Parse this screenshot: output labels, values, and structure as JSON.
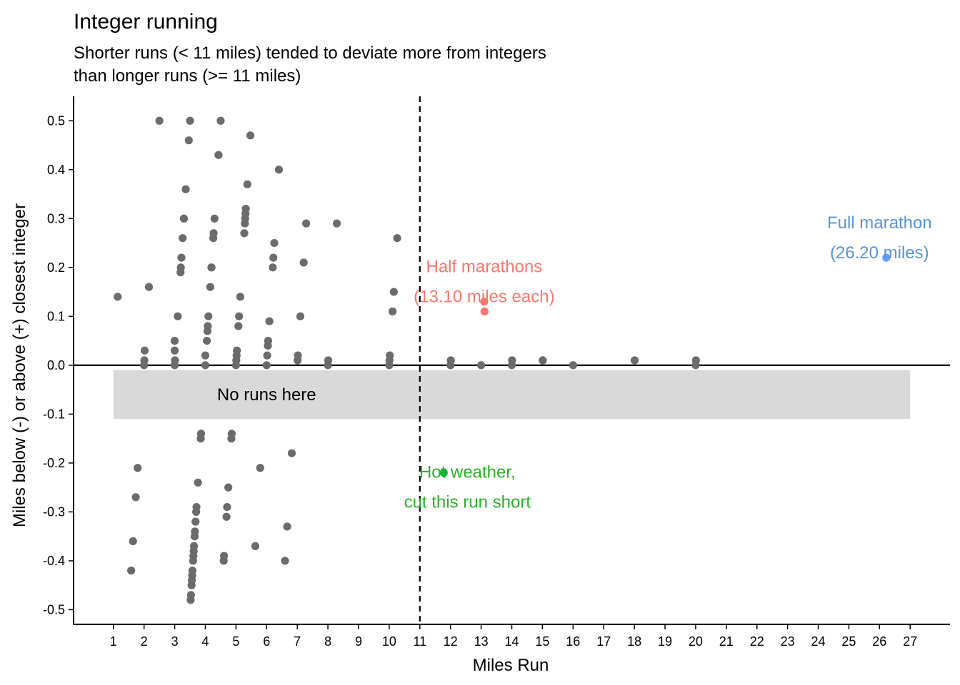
{
  "chart_data": {
    "type": "scatter",
    "title": "Integer running",
    "subtitle_lines": [
      "Shorter runs (< 11 miles) tended to deviate more from integers",
      "than longer runs (>= 11 miles)"
    ],
    "xlabel": "Miles Run",
    "ylabel": "Miles below (-) or above (+) closest integer",
    "xlim": [
      -0.3,
      28.3
    ],
    "ylim": [
      -0.53,
      0.55
    ],
    "x_ticks": [
      1,
      2,
      3,
      4,
      5,
      6,
      7,
      8,
      9,
      10,
      11,
      12,
      13,
      14,
      15,
      16,
      17,
      18,
      19,
      20,
      21,
      22,
      23,
      24,
      25,
      26,
      27
    ],
    "x_tick_labels": [
      "1",
      "2",
      "3",
      "4",
      "5",
      "6",
      "7",
      "8",
      "9",
      "10",
      "11",
      "12",
      "13",
      "14",
      "15",
      "16",
      "17",
      "18",
      "19",
      "20",
      "21",
      "22",
      "23",
      "24",
      "25",
      "26",
      "27"
    ],
    "y_ticks": [
      0.5,
      0.4,
      0.3,
      0.2,
      0.1,
      0.0,
      -0.1,
      -0.2,
      -0.3,
      -0.4,
      -0.5
    ],
    "y_tick_labels": [
      "0.5",
      "0.4",
      "0.3",
      "0.2",
      "0.1",
      "0.0",
      "-0.1",
      "-0.2",
      "-0.3",
      "-0.4",
      "-0.5"
    ],
    "grid": false,
    "reference_lines": {
      "horizontal_y": 0,
      "vertical_dashed_x": 11
    },
    "shaded_band": {
      "x": [
        1,
        27
      ],
      "y": [
        -0.11,
        -0.01
      ],
      "label": "No runs here",
      "color": "#d9d9d9"
    },
    "colors": {
      "default": "#6b6b6b",
      "half": "#f8766d",
      "full": "#619cff",
      "hot": "#00ba38",
      "full_label": "#5c93d6",
      "hot_label": "#2bb02b"
    },
    "series": [
      {
        "points": [
          [
            1.14,
            0.14
          ],
          [
            2.02,
            0.03
          ],
          [
            2.01,
            0.01
          ],
          [
            2.0,
            0.0
          ],
          [
            2.16,
            0.16
          ],
          [
            2.5,
            0.5
          ],
          [
            3.0,
            0.05
          ],
          [
            3.0,
            0.03
          ],
          [
            3.01,
            0.01
          ],
          [
            3.0,
            0.0
          ],
          [
            3.1,
            0.1
          ],
          [
            3.19,
            0.19
          ],
          [
            3.2,
            0.2
          ],
          [
            3.22,
            0.22
          ],
          [
            3.26,
            0.26
          ],
          [
            3.3,
            0.3
          ],
          [
            3.3,
            0.3
          ],
          [
            3.36,
            0.36
          ],
          [
            3.46,
            0.46
          ],
          [
            3.5,
            0.5
          ],
          [
            4.0,
            0.02
          ],
          [
            4.0,
            0.0
          ],
          [
            4.05,
            0.05
          ],
          [
            4.07,
            0.07
          ],
          [
            4.08,
            0.08
          ],
          [
            4.1,
            0.1
          ],
          [
            4.16,
            0.16
          ],
          [
            4.2,
            0.2
          ],
          [
            4.2,
            0.2
          ],
          [
            4.26,
            0.26
          ],
          [
            4.27,
            0.27
          ],
          [
            4.3,
            0.3
          ],
          [
            4.43,
            0.43
          ],
          [
            4.5,
            0.5
          ],
          [
            5.0,
            0.0
          ],
          [
            5.01,
            0.01
          ],
          [
            5.02,
            0.02
          ],
          [
            5.03,
            0.03
          ],
          [
            5.08,
            0.08
          ],
          [
            5.1,
            0.1
          ],
          [
            5.14,
            0.14
          ],
          [
            5.27,
            0.27
          ],
          [
            5.29,
            0.29
          ],
          [
            5.3,
            0.3
          ],
          [
            5.31,
            0.31
          ],
          [
            5.32,
            0.32
          ],
          [
            5.37,
            0.37
          ],
          [
            5.47,
            0.47
          ],
          [
            6.0,
            0.0
          ],
          [
            6.02,
            0.02
          ],
          [
            6.04,
            0.04
          ],
          [
            6.05,
            0.05
          ],
          [
            6.09,
            0.09
          ],
          [
            6.2,
            0.2
          ],
          [
            6.22,
            0.22
          ],
          [
            6.25,
            0.25
          ],
          [
            6.4,
            0.4
          ],
          [
            7.01,
            0.01
          ],
          [
            7.02,
            0.02
          ],
          [
            7.1,
            0.1
          ],
          [
            7.21,
            0.21
          ],
          [
            7.29,
            0.29
          ],
          [
            8.0,
            0.0
          ],
          [
            8.01,
            0.01
          ],
          [
            8.29,
            0.29
          ],
          [
            10.0,
            0.0
          ],
          [
            10.01,
            0.01
          ],
          [
            10.02,
            0.02
          ],
          [
            10.11,
            0.11
          ],
          [
            10.15,
            0.15
          ],
          [
            10.26,
            0.26
          ],
          [
            12.0,
            0.0
          ],
          [
            12.01,
            0.01
          ],
          [
            13.0,
            0.0
          ],
          [
            14.0,
            0.0
          ],
          [
            14.01,
            0.01
          ],
          [
            15.01,
            0.01
          ],
          [
            15.01,
            0.01
          ],
          [
            16.0,
            0.0
          ],
          [
            18.01,
            0.01
          ],
          [
            20.0,
            0.0
          ],
          [
            20.01,
            0.01
          ],
          [
            1.58,
            -0.42
          ],
          [
            1.64,
            -0.36
          ],
          [
            1.73,
            -0.27
          ],
          [
            1.79,
            -0.21
          ],
          [
            3.52,
            -0.48
          ],
          [
            3.53,
            -0.47
          ],
          [
            3.55,
            -0.45
          ],
          [
            3.56,
            -0.44
          ],
          [
            3.57,
            -0.43
          ],
          [
            3.58,
            -0.42
          ],
          [
            3.6,
            -0.4
          ],
          [
            3.61,
            -0.39
          ],
          [
            3.62,
            -0.38
          ],
          [
            3.63,
            -0.37
          ],
          [
            3.65,
            -0.35
          ],
          [
            3.66,
            -0.34
          ],
          [
            3.68,
            -0.32
          ],
          [
            3.7,
            -0.3
          ],
          [
            3.71,
            -0.29
          ],
          [
            3.76,
            -0.24
          ],
          [
            3.85,
            -0.15
          ],
          [
            3.86,
            -0.14
          ],
          [
            4.6,
            -0.4
          ],
          [
            4.61,
            -0.39
          ],
          [
            4.69,
            -0.31
          ],
          [
            4.71,
            -0.29
          ],
          [
            4.75,
            -0.25
          ],
          [
            4.85,
            -0.15
          ],
          [
            4.86,
            -0.14
          ],
          [
            5.63,
            -0.37
          ],
          [
            5.79,
            -0.21
          ],
          [
            6.6,
            -0.4
          ],
          [
            6.67,
            -0.33
          ],
          [
            6.82,
            -0.18
          ]
        ],
        "color_key": "default"
      },
      {
        "points": [
          [
            13.1,
            0.13
          ],
          [
            13.11,
            0.11
          ]
        ],
        "color_key": "half"
      },
      {
        "points": [
          [
            26.22,
            0.22
          ]
        ],
        "color_key": "full"
      },
      {
        "points": [
          [
            11.78,
            -0.22
          ]
        ],
        "color_key": "hot"
      }
    ],
    "annotations": [
      {
        "lines": [
          "Half marathons",
          "(13.10 miles each)"
        ],
        "x": 13.1,
        "y_top": 0.19,
        "color_key": "half"
      },
      {
        "lines": [
          "Full marathon",
          "(26.20 miles)"
        ],
        "x": 26.0,
        "y_top": 0.28,
        "color_key": "full_label"
      },
      {
        "lines": [
          "Hot weather,",
          "cut this run short"
        ],
        "x": 12.55,
        "y_top": -0.23,
        "color_key": "hot_label"
      }
    ]
  }
}
